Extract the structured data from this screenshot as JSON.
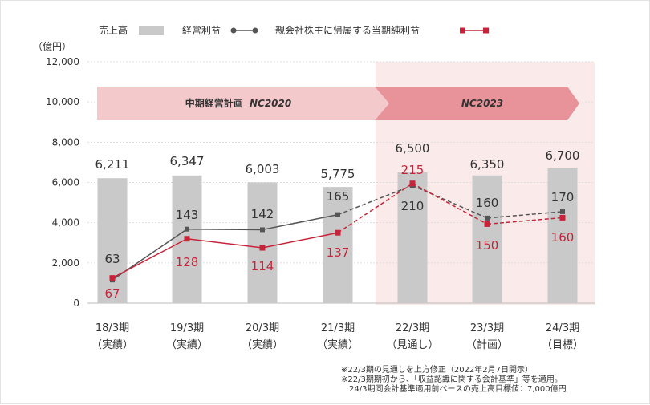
{
  "legend": {
    "sales": "売上高",
    "operating_profit": "経営利益",
    "net_profit": "親会社株主に帰属する当期純利益"
  },
  "colors": {
    "bar": "#c9c9c9",
    "operating_line": "#555555",
    "net_line": "#c7243a",
    "plan_arrow_1": "#f3c9cc",
    "plan_arrow_2": "#e8929a",
    "forecast_bg": "#fbeaea"
  },
  "plans": [
    {
      "label": "中期経営計画",
      "sub": "NC2020"
    },
    {
      "label": "",
      "sub": "NC2023"
    }
  ],
  "notes": [
    "※22/3期の見通しを上方修正（2022年2月7日開示）",
    "※22/3期期初から、「収益認識に関する会計基準」等を適用。",
    "　24/3期同会計基準適用前ベースの売上高目標値：7,000億円"
  ],
  "chart_data": {
    "type": "bar",
    "yunit": "（億円）",
    "ylim": [
      0,
      12000
    ],
    "yticks": [
      "0",
      "2,000",
      "4,000",
      "6,000",
      "8,000",
      "10,000",
      "12,000"
    ],
    "categories": [
      "18/3期",
      "19/3期",
      "20/3期",
      "21/3期",
      "22/3期",
      "23/3期",
      "24/3期"
    ],
    "category_notes": [
      "（実績）",
      "（実績）",
      "（実績）",
      "（実績）",
      "（見通し）",
      "（計画）",
      "（目標）"
    ],
    "forecast_from_index": 4,
    "series": [
      {
        "name": "売上高",
        "kind": "bar",
        "values": [
          6211,
          6347,
          6003,
          5775,
          6500,
          6350,
          6700
        ],
        "labels": [
          "6,211",
          "6,347",
          "6,003",
          "5,775",
          "6,500",
          "6,350",
          "6,700"
        ]
      },
      {
        "name": "経営利益",
        "kind": "line",
        "values": [
          63,
          143,
          142,
          165,
          210,
          160,
          170
        ],
        "labels": [
          "63",
          "143",
          "142",
          "165",
          "210",
          "160",
          "170"
        ],
        "plotted_levels": [
          1150,
          3680,
          3650,
          4400,
          5850,
          4230,
          4550
        ]
      },
      {
        "name": "親会社株主に帰属する当期純利益",
        "kind": "line",
        "values": [
          67,
          128,
          114,
          137,
          215,
          150,
          160
        ],
        "labels": [
          "67",
          "128",
          "114",
          "137",
          "215",
          "150",
          "160"
        ],
        "plotted_levels": [
          1250,
          3200,
          2750,
          3500,
          5950,
          3930,
          4250
        ]
      }
    ]
  }
}
